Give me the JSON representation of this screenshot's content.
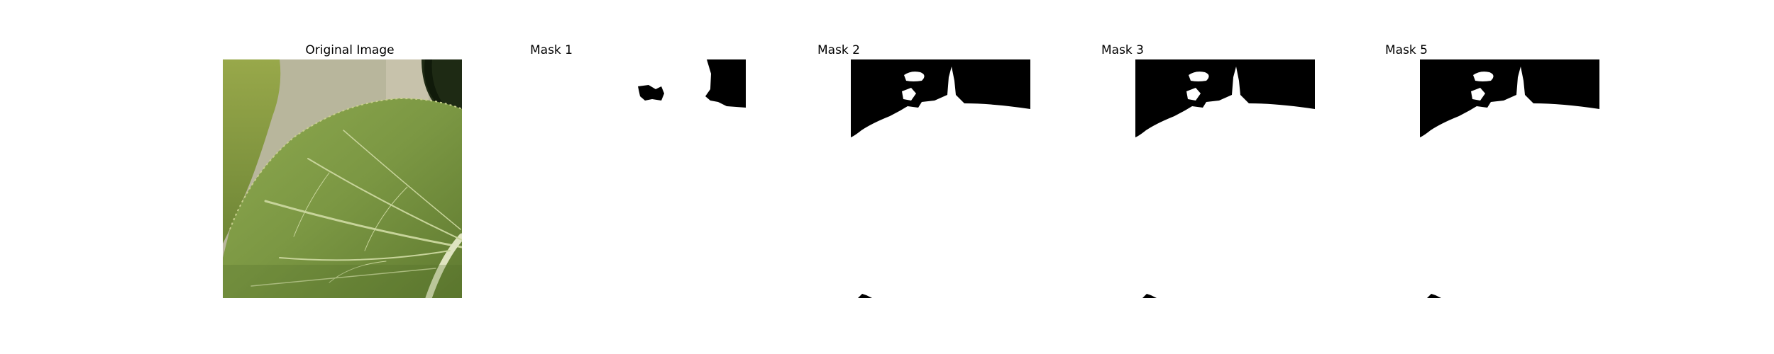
{
  "figure": {
    "panels": [
      {
        "title": "Original Image"
      },
      {
        "title": "Mask 1"
      },
      {
        "title": "Mask 2"
      },
      {
        "title": "Mask 3"
      },
      {
        "title": "Mask 5"
      }
    ]
  },
  "colors": {
    "background": "#ffffff",
    "mask_foreground": "#000000",
    "leaf_main": "#7f9a45",
    "leaf_dark": "#5e7a31",
    "vein": "#c9d79d",
    "wall": "#b9b79e"
  }
}
